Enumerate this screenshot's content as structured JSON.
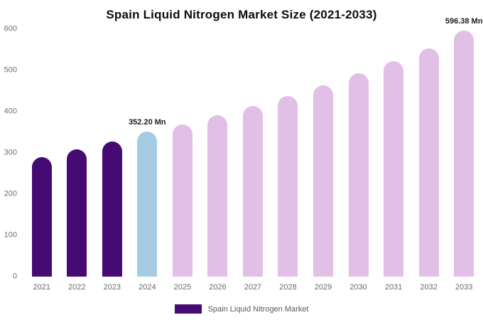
{
  "title": "Spain Liquid Nitrogen Market Size (2021-2033)",
  "legend": {
    "label": "Spain Liquid Nitrogen Market",
    "swatch_color": "#460a73"
  },
  "colors": {
    "historical_bar": "#460a73",
    "highlight_bar": "#a4cbe3",
    "forecast_bar": "#e2bfe6",
    "axis_text": "#6f6f6f",
    "annotation_text": "#1c1c1c"
  },
  "chart_data": {
    "type": "bar",
    "title": "Spain Liquid Nitrogen Market Size (2021-2033)",
    "xlabel": "",
    "ylabel": "",
    "categories": [
      "2021",
      "2022",
      "2023",
      "2024",
      "2025",
      "2026",
      "2027",
      "2028",
      "2029",
      "2030",
      "2031",
      "2032",
      "2033"
    ],
    "values": [
      289,
      308,
      328,
      352.2,
      369,
      391,
      414,
      438,
      464,
      493,
      522,
      553,
      596.38
    ],
    "bar_colors": [
      "#460a73",
      "#460a73",
      "#460a73",
      "#a4cbe3",
      "#e2bfe6",
      "#e2bfe6",
      "#e2bfe6",
      "#e2bfe6",
      "#e2bfe6",
      "#e2bfe6",
      "#e2bfe6",
      "#e2bfe6",
      "#e2bfe6"
    ],
    "annotations": [
      {
        "index": 3,
        "text": "352.20 Mn"
      },
      {
        "index": 12,
        "text": "596.38 Mn"
      }
    ],
    "ylim": [
      0,
      600
    ],
    "yticks": [
      0,
      100,
      200,
      300,
      400,
      500,
      600
    ],
    "grid": false,
    "legend_position": "bottom",
    "unit": "Mn"
  }
}
